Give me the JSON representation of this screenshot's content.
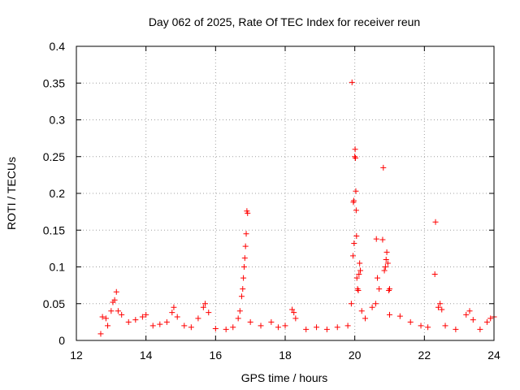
{
  "chart_data": {
    "type": "scatter",
    "title": "Day 062 of 2025, Rate Of TEC Index for receiver reun",
    "xlabel": "GPS time / hours",
    "ylabel": "ROTI / TECUs",
    "xlim": [
      12,
      24
    ],
    "ylim": [
      0,
      0.4
    ],
    "x_ticks": [
      12,
      14,
      16,
      18,
      20,
      22,
      24
    ],
    "x_tick_labels": [
      "12",
      "14",
      "16",
      "18",
      "20",
      "22",
      "24"
    ],
    "y_ticks": [
      0,
      0.05,
      0.1,
      0.15,
      0.2,
      0.25,
      0.3,
      0.35,
      0.4
    ],
    "y_tick_labels": [
      "0",
      "0.05",
      "0.1",
      "0.15",
      "0.2",
      "0.25",
      "0.3",
      "0.35",
      "0.4"
    ],
    "grid": true,
    "marker": "+",
    "color": "#ff0000",
    "series": [
      {
        "name": "ROTI",
        "points": [
          [
            12.7,
            0.009
          ],
          [
            12.75,
            0.032
          ],
          [
            12.85,
            0.03
          ],
          [
            12.9,
            0.02
          ],
          [
            13.0,
            0.04
          ],
          [
            13.05,
            0.052
          ],
          [
            13.1,
            0.055
          ],
          [
            13.15,
            0.066
          ],
          [
            13.2,
            0.04
          ],
          [
            13.3,
            0.035
          ],
          [
            13.5,
            0.025
          ],
          [
            13.7,
            0.028
          ],
          [
            13.9,
            0.032
          ],
          [
            14.0,
            0.035
          ],
          [
            14.2,
            0.02
          ],
          [
            14.4,
            0.022
          ],
          [
            14.6,
            0.025
          ],
          [
            14.75,
            0.038
          ],
          [
            14.8,
            0.045
          ],
          [
            14.9,
            0.032
          ],
          [
            15.1,
            0.02
          ],
          [
            15.3,
            0.018
          ],
          [
            15.5,
            0.03
          ],
          [
            15.65,
            0.045
          ],
          [
            15.7,
            0.05
          ],
          [
            15.8,
            0.038
          ],
          [
            16.0,
            0.016
          ],
          [
            16.3,
            0.015
          ],
          [
            16.5,
            0.018
          ],
          [
            16.65,
            0.03
          ],
          [
            16.7,
            0.04
          ],
          [
            16.75,
            0.06
          ],
          [
            16.78,
            0.07
          ],
          [
            16.8,
            0.085
          ],
          [
            16.82,
            0.1
          ],
          [
            16.84,
            0.112
          ],
          [
            16.86,
            0.128
          ],
          [
            16.88,
            0.145
          ],
          [
            16.9,
            0.176
          ],
          [
            16.92,
            0.173
          ],
          [
            17.0,
            0.025
          ],
          [
            17.3,
            0.02
          ],
          [
            17.6,
            0.025
          ],
          [
            17.8,
            0.018
          ],
          [
            18.0,
            0.02
          ],
          [
            18.2,
            0.042
          ],
          [
            18.25,
            0.038
          ],
          [
            18.3,
            0.03
          ],
          [
            18.6,
            0.015
          ],
          [
            18.9,
            0.018
          ],
          [
            19.2,
            0.015
          ],
          [
            19.5,
            0.018
          ],
          [
            19.8,
            0.02
          ],
          [
            19.9,
            0.05
          ],
          [
            19.92,
            0.351
          ],
          [
            19.95,
            0.115
          ],
          [
            19.96,
            0.188
          ],
          [
            19.97,
            0.19
          ],
          [
            19.98,
            0.132
          ],
          [
            20.0,
            0.25
          ],
          [
            20.01,
            0.26
          ],
          [
            20.02,
            0.248
          ],
          [
            20.03,
            0.203
          ],
          [
            20.04,
            0.177
          ],
          [
            20.05,
            0.142
          ],
          [
            20.06,
            0.085
          ],
          [
            20.08,
            0.07
          ],
          [
            20.1,
            0.068
          ],
          [
            20.12,
            0.09
          ],
          [
            20.14,
            0.105
          ],
          [
            20.16,
            0.095
          ],
          [
            20.2,
            0.04
          ],
          [
            20.3,
            0.03
          ],
          [
            20.5,
            0.045
          ],
          [
            20.6,
            0.05
          ],
          [
            20.62,
            0.138
          ],
          [
            20.65,
            0.085
          ],
          [
            20.7,
            0.07
          ],
          [
            20.8,
            0.137
          ],
          [
            20.82,
            0.235
          ],
          [
            20.85,
            0.095
          ],
          [
            20.88,
            0.1
          ],
          [
            20.9,
            0.11
          ],
          [
            20.92,
            0.12
          ],
          [
            20.95,
            0.105
          ],
          [
            20.98,
            0.068
          ],
          [
            21.0,
            0.07
          ],
          [
            21.0,
            0.035
          ],
          [
            21.3,
            0.033
          ],
          [
            21.6,
            0.025
          ],
          [
            21.9,
            0.02
          ],
          [
            22.1,
            0.018
          ],
          [
            22.3,
            0.09
          ],
          [
            22.32,
            0.161
          ],
          [
            22.4,
            0.045
          ],
          [
            22.45,
            0.05
          ],
          [
            22.5,
            0.042
          ],
          [
            22.6,
            0.02
          ],
          [
            22.9,
            0.015
          ],
          [
            23.2,
            0.035
          ],
          [
            23.3,
            0.04
          ],
          [
            23.4,
            0.028
          ],
          [
            23.6,
            0.015
          ],
          [
            23.8,
            0.025
          ],
          [
            23.9,
            0.03
          ],
          [
            24.0,
            0.032
          ]
        ]
      }
    ]
  }
}
